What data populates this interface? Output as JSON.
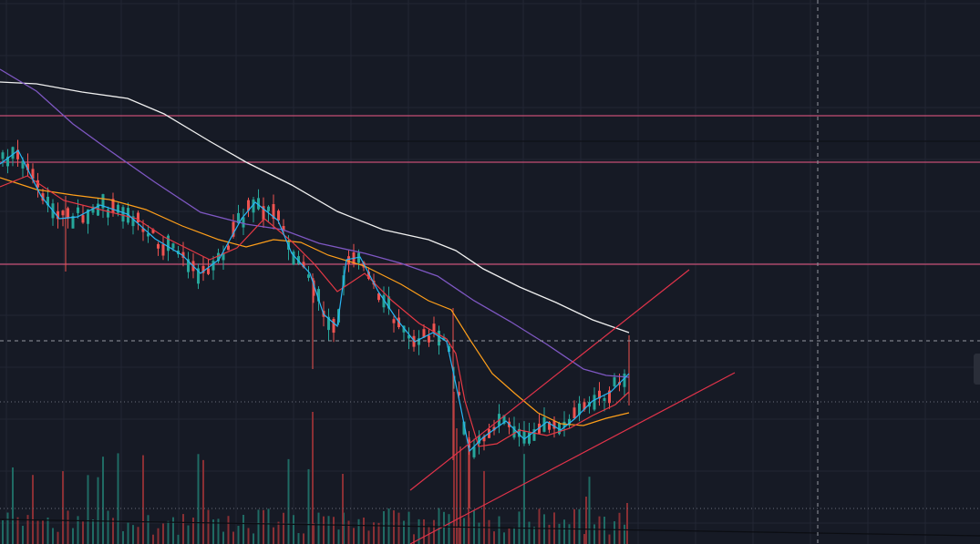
{
  "chart_data": {
    "type": "candlestick",
    "x_domain": [
      0,
      1075
    ],
    "y_domain": [
      730,
      95
    ],
    "colors": {
      "background": "#161a25",
      "grid": "#222634",
      "up": "#26a69a",
      "down": "#ef5350",
      "volume_up": "#1f6b64",
      "volume_down": "#8a2f34",
      "level": "#f05a86",
      "trendline": "#e0334a",
      "crosshair": "#9598a1",
      "ema_fast": "#29b6f6",
      "ema_mid": "#e53945",
      "ema_slow": "#ff9f1a",
      "ema_long": "#7e57c2",
      "ema_200": "#f0f0f0"
    },
    "horizontal_levels": [
      127,
      178,
      290
    ],
    "thin_levels": [
      155,
      441,
      558
    ],
    "trendlines": [
      {
        "x1": 450,
        "y1": 538,
        "x2": 756,
        "y2": 296
      },
      {
        "x1": 450,
        "y1": 597,
        "x2": 806,
        "y2": 409
      },
      {
        "x1": 0,
        "y1": 570,
        "x2": 1075,
        "y2": 588
      }
    ],
    "crosshair": {
      "x": 897,
      "y": 374
    },
    "ema_200": [
      [
        0,
        90
      ],
      [
        40,
        92
      ],
      [
        90,
        101
      ],
      [
        140,
        108
      ],
      [
        180,
        125
      ],
      [
        230,
        155
      ],
      [
        270,
        178
      ],
      [
        320,
        203
      ],
      [
        370,
        232
      ],
      [
        420,
        252
      ],
      [
        470,
        263
      ],
      [
        500,
        275
      ],
      [
        530,
        295
      ],
      [
        570,
        315
      ],
      [
        610,
        332
      ],
      [
        650,
        351
      ],
      [
        690,
        365
      ]
    ],
    "ema_long": [
      [
        0,
        76
      ],
      [
        40,
        100
      ],
      [
        80,
        136
      ],
      [
        120,
        165
      ],
      [
        170,
        200
      ],
      [
        220,
        233
      ],
      [
        270,
        246
      ],
      [
        310,
        252
      ],
      [
        350,
        267
      ],
      [
        400,
        278
      ],
      [
        440,
        289
      ],
      [
        480,
        303
      ],
      [
        520,
        330
      ],
      [
        560,
        353
      ],
      [
        600,
        378
      ],
      [
        640,
        405
      ],
      [
        665,
        412
      ],
      [
        690,
        414
      ]
    ],
    "ema_slow": [
      [
        0,
        195
      ],
      [
        40,
        208
      ],
      [
        80,
        214
      ],
      [
        120,
        219
      ],
      [
        160,
        230
      ],
      [
        200,
        248
      ],
      [
        240,
        263
      ],
      [
        270,
        271
      ],
      [
        300,
        263
      ],
      [
        330,
        266
      ],
      [
        360,
        280
      ],
      [
        400,
        292
      ],
      [
        440,
        312
      ],
      [
        470,
        330
      ],
      [
        495,
        340
      ],
      [
        515,
        372
      ],
      [
        540,
        410
      ],
      [
        565,
        432
      ],
      [
        590,
        453
      ],
      [
        615,
        465
      ],
      [
        640,
        467
      ],
      [
        665,
        459
      ],
      [
        690,
        453
      ]
    ],
    "ema_mid": [
      [
        0,
        205
      ],
      [
        30,
        193
      ],
      [
        70,
        220
      ],
      [
        110,
        230
      ],
      [
        150,
        240
      ],
      [
        180,
        260
      ],
      [
        200,
        270
      ],
      [
        230,
        285
      ],
      [
        260,
        272
      ],
      [
        290,
        240
      ],
      [
        320,
        265
      ],
      [
        345,
        290
      ],
      [
        370,
        320
      ],
      [
        400,
        300
      ],
      [
        430,
        330
      ],
      [
        460,
        355
      ],
      [
        490,
        372
      ],
      [
        500,
        388
      ],
      [
        510,
        440
      ],
      [
        525,
        490
      ],
      [
        545,
        487
      ],
      [
        570,
        472
      ],
      [
        600,
        478
      ],
      [
        625,
        470
      ],
      [
        650,
        456
      ],
      [
        675,
        444
      ],
      [
        690,
        430
      ]
    ],
    "ema_fast": [
      [
        0,
        180
      ],
      [
        20,
        165
      ],
      [
        45,
        215
      ],
      [
        65,
        240
      ],
      [
        85,
        238
      ],
      [
        110,
        225
      ],
      [
        140,
        235
      ],
      [
        170,
        262
      ],
      [
        200,
        280
      ],
      [
        220,
        300
      ],
      [
        240,
        285
      ],
      [
        265,
        240
      ],
      [
        280,
        222
      ],
      [
        305,
        242
      ],
      [
        320,
        278
      ],
      [
        340,
        300
      ],
      [
        355,
        345
      ],
      [
        370,
        358
      ],
      [
        380,
        285
      ],
      [
        395,
        282
      ],
      [
        415,
        320
      ],
      [
        435,
        350
      ],
      [
        455,
        375
      ],
      [
        475,
        365
      ],
      [
        490,
        375
      ],
      [
        505,
        445
      ],
      [
        515,
        495
      ],
      [
        530,
        480
      ],
      [
        555,
        462
      ],
      [
        575,
        482
      ],
      [
        600,
        463
      ],
      [
        615,
        472
      ],
      [
        630,
        460
      ],
      [
        650,
        440
      ],
      [
        670,
        430
      ],
      [
        690,
        410
      ]
    ],
    "candle_count": 125,
    "candle_start_x": 3,
    "candle_step_x": 5.5
  }
}
